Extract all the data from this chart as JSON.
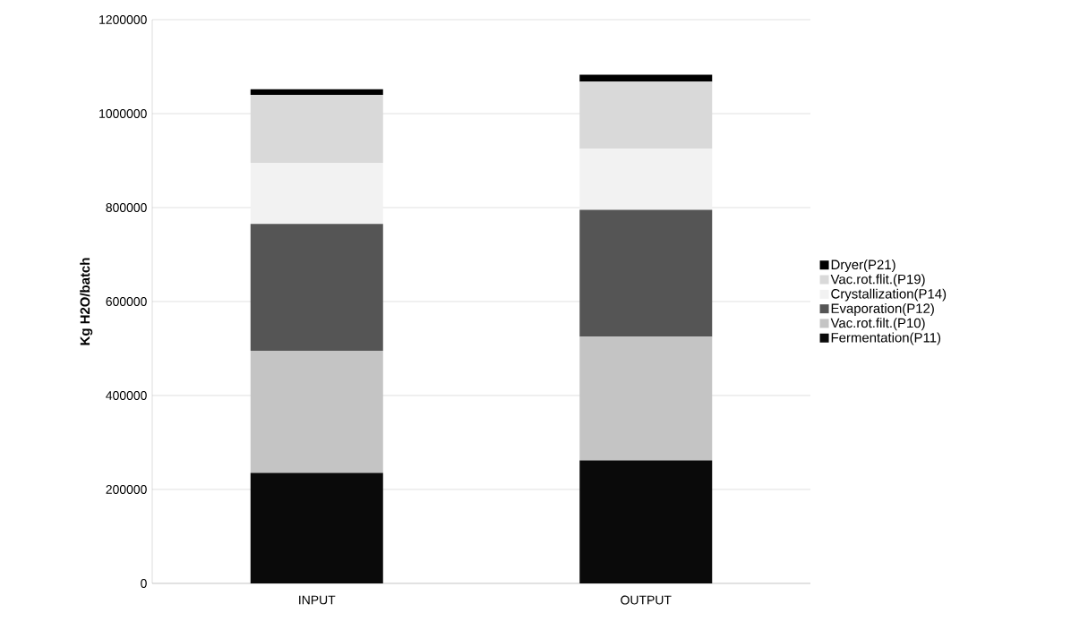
{
  "chart_data": {
    "type": "bar",
    "stacked": true,
    "ylabel": "Kg H2O/batch",
    "categories": [
      "INPUT",
      "OUTPUT"
    ],
    "series": [
      {
        "name": "Fermentation(P11)",
        "color": "#0a0a0a",
        "values": [
          235000,
          262000
        ]
      },
      {
        "name": "Vac.rot.filt.(P10)",
        "color": "#c4c4c4",
        "values": [
          260000,
          263000
        ]
      },
      {
        "name": "Evaporation(P12)",
        "color": "#555555",
        "values": [
          270000,
          270000
        ]
      },
      {
        "name": "Crystallization(P14)",
        "color": "#f2f2f2",
        "values": [
          130000,
          130000
        ]
      },
      {
        "name": "Vac.rot.flit.(P19)",
        "color": "#d9d9d9",
        "values": [
          145000,
          143000
        ]
      },
      {
        "name": "Dryer(P21)",
        "color": "#000000",
        "values": [
          12000,
          15000
        ]
      }
    ],
    "ylim": [
      0,
      1200000
    ],
    "yticks": [
      0,
      200000,
      400000,
      600000,
      800000,
      1000000,
      1200000
    ],
    "grid": "y",
    "legend": "right"
  }
}
